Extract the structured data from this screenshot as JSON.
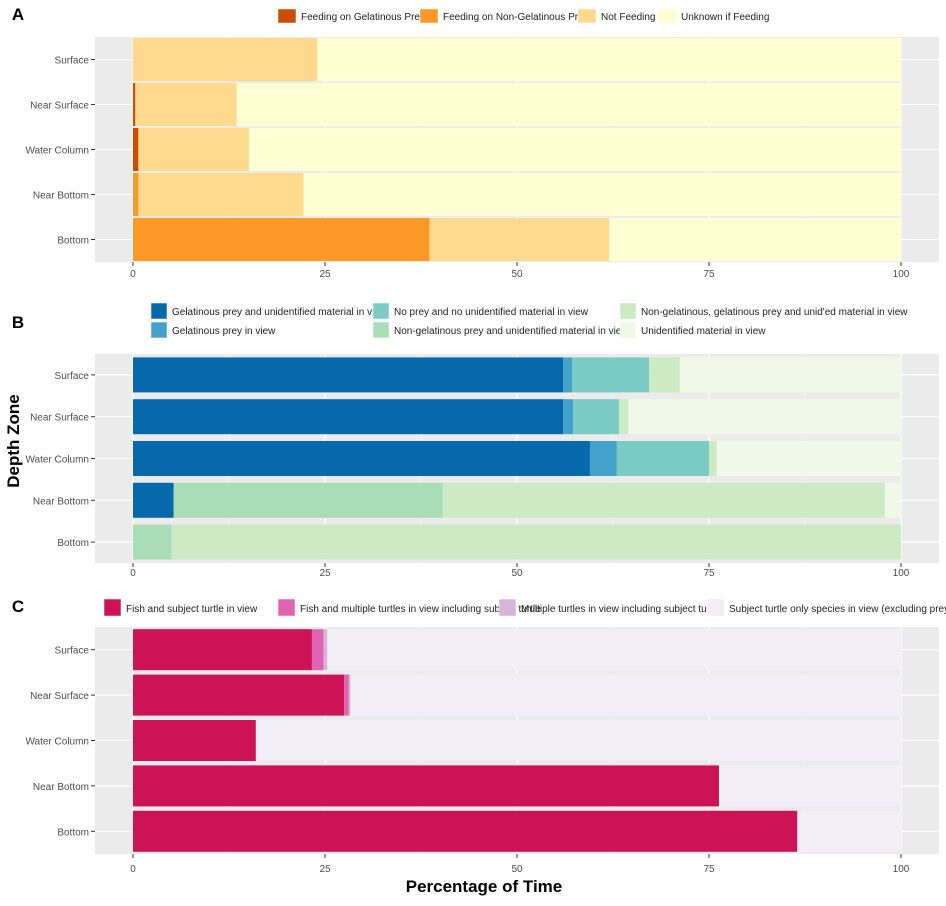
{
  "shared": {
    "y_axis_title": "Depth Zone",
    "x_axis_title": "Percentage of Time"
  },
  "chart_data": [
    {
      "type": "bar",
      "orientation": "horizontal",
      "stacked": true,
      "panel_label": "A",
      "categories": [
        "Surface",
        "Near Surface",
        "Water Column",
        "Near Bottom",
        "Bottom"
      ],
      "series": [
        {
          "name": "Feeding on Gelatinous Prey",
          "color": "#cc4c02",
          "values": [
            0,
            0.3,
            0.7,
            0,
            0
          ]
        },
        {
          "name": "Feeding on Non-Gelatinous Prey",
          "color": "#fe9929",
          "values": [
            0,
            0,
            0,
            0.7,
            38.6
          ]
        },
        {
          "name": "Not Feeding",
          "color": "#fed98e",
          "values": [
            24.0,
            13.2,
            14.4,
            21.5,
            23.4
          ]
        },
        {
          "name": "Unknown if Feeding",
          "color": "#ffffd4",
          "values": [
            76.0,
            86.5,
            84.9,
            77.8,
            38.0
          ]
        }
      ],
      "xlim": [
        0,
        100
      ],
      "x_ticks": [
        0,
        25,
        50,
        75,
        100
      ],
      "legend_position": "top"
    },
    {
      "type": "bar",
      "orientation": "horizontal",
      "stacked": true,
      "panel_label": "B",
      "categories": [
        "Surface",
        "Near Surface",
        "Water Column",
        "Near Bottom",
        "Bottom"
      ],
      "series": [
        {
          "name": "Gelatinous prey and unidentified material in view",
          "color": "#0868ac",
          "values": [
            56.0,
            56.0,
            59.5,
            5.3,
            0
          ]
        },
        {
          "name": "Gelatinous prey in view",
          "color": "#43a2ca",
          "values": [
            1.2,
            1.3,
            3.5,
            0,
            0
          ]
        },
        {
          "name": "No prey and no unidentified material in view",
          "color": "#7bccc4",
          "values": [
            10.0,
            6.0,
            12.0,
            0,
            0
          ]
        },
        {
          "name": "Non-gelatinous prey and unidentified material in view",
          "color": "#a8ddb5",
          "values": [
            0,
            0,
            0,
            35.0,
            5.0
          ]
        },
        {
          "name": "Non-gelatinous, gelatinous prey and unid'ed material in view",
          "color": "#ccebc5",
          "values": [
            4.0,
            1.2,
            1.0,
            57.6,
            95.0
          ]
        },
        {
          "name": "Unidentified material in view",
          "color": "#f0f9e8",
          "values": [
            28.8,
            35.5,
            24.0,
            2.1,
            0
          ]
        }
      ],
      "xlim": [
        0,
        100
      ],
      "x_ticks": [
        0,
        25,
        50,
        75,
        100
      ],
      "legend_position": "top"
    },
    {
      "type": "bar",
      "orientation": "horizontal",
      "stacked": true,
      "panel_label": "C",
      "categories": [
        "Surface",
        "Near Surface",
        "Water Column",
        "Near Bottom",
        "Bottom"
      ],
      "series": [
        {
          "name": "Fish and subject turtle in view",
          "color": "#ce1256",
          "values": [
            23.3,
            27.5,
            16.0,
            76.3,
            86.5
          ]
        },
        {
          "name": "Fish and multiple turtles in view including subject turtle",
          "color": "#df65b0",
          "values": [
            1.5,
            0.6,
            0,
            0,
            0
          ]
        },
        {
          "name": "Multiple turtles in view including subject turtle",
          "color": "#d7b5d8",
          "values": [
            0.5,
            0.2,
            0,
            0,
            0
          ]
        },
        {
          "name": "Subject turtle only species in view (excluding prey)",
          "color": "#f1eef6",
          "values": [
            74.7,
            71.7,
            84.0,
            23.7,
            13.5
          ]
        }
      ],
      "xlim": [
        0,
        100
      ],
      "x_ticks": [
        0,
        25,
        50,
        75,
        100
      ],
      "legend_position": "top"
    }
  ]
}
